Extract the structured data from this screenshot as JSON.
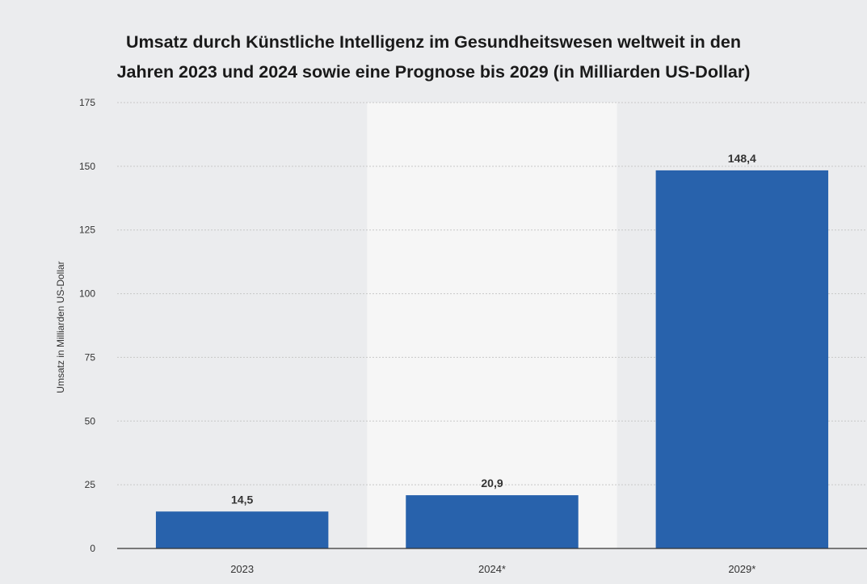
{
  "chart_data": {
    "type": "bar",
    "title": [
      "Umsatz durch Künstliche Intelligenz im Gesundheitswesen weltweit in den",
      "Jahren 2023 und 2024 sowie eine Prognose bis 2029 (in Milliarden US-Dollar)"
    ],
    "ylabel": "Umsatz in Milliarden US-Dollar",
    "xlabel": "",
    "categories": [
      "2023",
      "2024*",
      "2029*"
    ],
    "values": [
      14.5,
      20.9,
      148.4
    ],
    "value_labels": [
      "14,5",
      "20,9",
      "148,4"
    ],
    "ylim": [
      0,
      175
    ],
    "yticks": [
      0,
      25,
      50,
      75,
      100,
      125,
      150,
      175
    ],
    "grid": true,
    "legend": "none",
    "colors": {
      "bar": "#2862ac",
      "background": "#ebecee",
      "highlight_band": "#f6f6f6",
      "grid": "#c8c8c8",
      "text": "#333333"
    }
  }
}
